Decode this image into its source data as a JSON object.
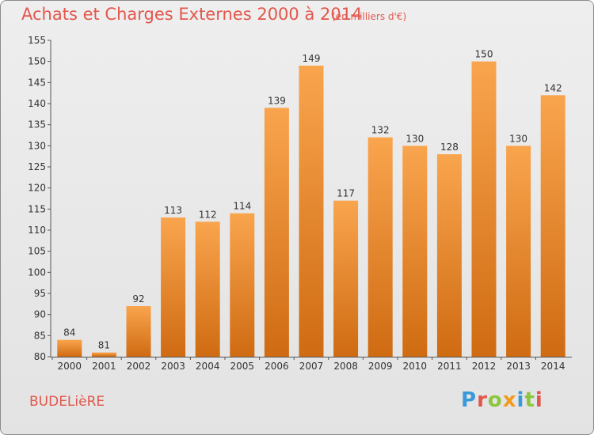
{
  "header": {
    "title": "Achats et Charges Externes 2000 à 2014",
    "subtitle": "(en milliers d'€)"
  },
  "footer": {
    "commune": "BUDELièRE",
    "logo": "Proxiti"
  },
  "colors": {
    "bar_light": "#f9a54e",
    "bar_dark": "#cf6b12",
    "title": "#e2574c",
    "logo_letters": [
      "#3a9ad9",
      "#e2574c",
      "#8cc63f",
      "#f29a1d",
      "#3a9ad9",
      "#8cc63f",
      "#e2574c"
    ]
  },
  "chart_data": {
    "type": "bar",
    "title": "Achats et Charges Externes 2000 à 2014",
    "subtitle": "(en milliers d'€)",
    "categories": [
      "2000",
      "2001",
      "2002",
      "2003",
      "2004",
      "2005",
      "2006",
      "2007",
      "2008",
      "2009",
      "2010",
      "2011",
      "2012",
      "2013",
      "2014"
    ],
    "values": [
      84,
      81,
      92,
      113,
      112,
      114,
      139,
      149,
      117,
      132,
      130,
      128,
      150,
      130,
      142
    ],
    "ylim": [
      80,
      155
    ],
    "yticks": [
      80,
      85,
      90,
      95,
      100,
      105,
      110,
      115,
      120,
      125,
      130,
      135,
      140,
      145,
      150,
      155
    ],
    "grid": false,
    "legend": "none"
  }
}
